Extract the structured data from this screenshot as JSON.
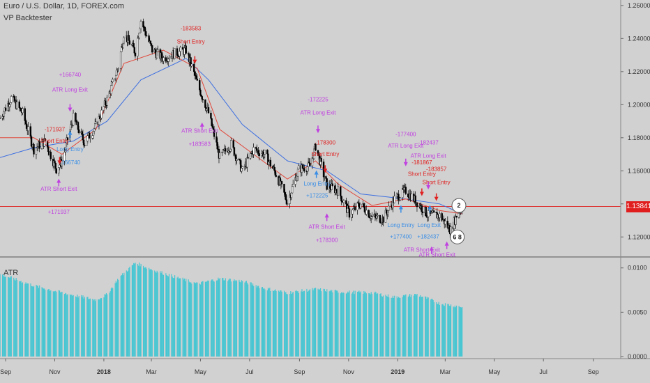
{
  "header": {
    "symbol_title": "Euro / U.S. Dollar, 1D, FOREX.com",
    "indicator_name": "VP Backtester",
    "atr_label": "ATR"
  },
  "colors": {
    "background": "#d1d1d1",
    "bull_candle": "#ffffff",
    "bear_candle": "#000000",
    "ema_fast": "#e0473a",
    "ema_slow": "#3d6fe0",
    "atr_bars": "#46c6d2",
    "long_label": "#3a8ee6",
    "short_label": "#e02020",
    "atr_exit_label": "#c040e0",
    "last_price": "#e01e1e"
  },
  "price_axis": {
    "ticks": [
      "1.26000",
      "1.24000",
      "1.22000",
      "1.20000",
      "1.18000",
      "1.16000",
      "1.14000",
      "1.12000"
    ],
    "last_price": "1.13841"
  },
  "atr_axis": {
    "ticks": [
      "0.0100",
      "0.0050",
      "0.0000"
    ]
  },
  "time_axis": {
    "ticks": [
      "Sep",
      "Nov",
      "2018",
      "Mar",
      "May",
      "Jul",
      "Sep",
      "Nov",
      "2019",
      "Mar",
      "May",
      "Jul",
      "Sep"
    ]
  },
  "trade_labels": [
    {
      "text": "+166740",
      "kind": "atr"
    },
    {
      "text": "ATR Long Exit",
      "kind": "atr"
    },
    {
      "text": "-171937",
      "kind": "short"
    },
    {
      "text": "Short Entry",
      "kind": "short"
    },
    {
      "text": "Long Entry",
      "kind": "long"
    },
    {
      "text": "-166740",
      "kind": "long"
    },
    {
      "text": "ATR Short Exit",
      "kind": "atr"
    },
    {
      "text": "+171937",
      "kind": "atr"
    },
    {
      "text": "-183583",
      "kind": "short"
    },
    {
      "text": "Short Entry",
      "kind": "short"
    },
    {
      "text": "ATR Short Exit",
      "kind": "atr"
    },
    {
      "text": "+183583",
      "kind": "atr"
    },
    {
      "text": "-172225",
      "kind": "atr"
    },
    {
      "text": "ATR Long Exit",
      "kind": "atr"
    },
    {
      "text": "-178300",
      "kind": "short"
    },
    {
      "text": "Short Entry",
      "kind": "short"
    },
    {
      "text": "Long Entry",
      "kind": "long"
    },
    {
      "text": "+172225",
      "kind": "long"
    },
    {
      "text": "ATR Short Exit",
      "kind": "atr"
    },
    {
      "text": "+178300",
      "kind": "atr"
    },
    {
      "text": "-177400",
      "kind": "atr"
    },
    {
      "text": "ATR Long Exit",
      "kind": "atr"
    },
    {
      "text": "-182437",
      "kind": "atr"
    },
    {
      "text": "ATR Long Exit",
      "kind": "atr"
    },
    {
      "text": "-181867",
      "kind": "short"
    },
    {
      "text": "Short Entry",
      "kind": "short"
    },
    {
      "text": "-183857",
      "kind": "short"
    },
    {
      "text": "Short Entry",
      "kind": "short"
    },
    {
      "text": "Long Entry",
      "kind": "long"
    },
    {
      "text": "Long Exit",
      "kind": "long"
    },
    {
      "text": "+177400",
      "kind": "long"
    },
    {
      "text": "+182437",
      "kind": "long"
    },
    {
      "text": "ATR Short Exit",
      "kind": "atr"
    },
    {
      "text": "ATR Short Exit",
      "kind": "atr"
    }
  ],
  "event_badges": [
    "2",
    "6 8"
  ],
  "chart_data": {
    "type": "candlestick",
    "title": "Euro / U.S. Dollar, 1D, FOREX.com",
    "x_range": [
      "Sep 2017",
      "Oct 2019"
    ],
    "ylim": [
      1.11,
      1.265
    ],
    "close_series": {
      "name": "EUR/USD close",
      "points": [
        [
          "2017-08-25",
          1.192
        ],
        [
          "2017-09-08",
          1.204
        ],
        [
          "2017-09-22",
          1.195
        ],
        [
          "2017-10-06",
          1.173
        ],
        [
          "2017-10-20",
          1.178
        ],
        [
          "2017-11-03",
          1.161
        ],
        [
          "2017-11-10",
          1.166
        ],
        [
          "2017-11-24",
          1.192
        ],
        [
          "2017-12-08",
          1.177
        ],
        [
          "2017-12-22",
          1.187
        ],
        [
          "2018-01-05",
          1.203
        ],
        [
          "2018-01-19",
          1.223
        ],
        [
          "2018-01-26",
          1.243
        ],
        [
          "2018-02-09",
          1.232
        ],
        [
          "2018-02-16",
          1.251
        ],
        [
          "2018-03-02",
          1.233
        ],
        [
          "2018-03-16",
          1.228
        ],
        [
          "2018-03-30",
          1.231
        ],
        [
          "2018-04-13",
          1.233
        ],
        [
          "2018-04-27",
          1.213
        ],
        [
          "2018-05-11",
          1.195
        ],
        [
          "2018-05-25",
          1.168
        ],
        [
          "2018-06-08",
          1.176
        ],
        [
          "2018-06-22",
          1.16
        ],
        [
          "2018-07-06",
          1.173
        ],
        [
          "2018-07-20",
          1.17
        ],
        [
          "2018-08-03",
          1.158
        ],
        [
          "2018-08-17",
          1.141
        ],
        [
          "2018-08-31",
          1.161
        ],
        [
          "2018-09-14",
          1.163
        ],
        [
          "2018-09-21",
          1.175
        ],
        [
          "2018-10-05",
          1.151
        ],
        [
          "2018-10-19",
          1.148
        ],
        [
          "2018-11-02",
          1.134
        ],
        [
          "2018-11-16",
          1.14
        ],
        [
          "2018-11-30",
          1.132
        ],
        [
          "2018-12-14",
          1.131
        ],
        [
          "2018-12-28",
          1.143
        ],
        [
          "2019-01-11",
          1.148
        ],
        [
          "2019-01-25",
          1.141
        ],
        [
          "2019-02-08",
          1.133
        ],
        [
          "2019-02-22",
          1.133
        ],
        [
          "2019-03-08",
          1.124
        ],
        [
          "2019-03-15",
          1.133
        ],
        [
          "2019-03-22",
          1.138
        ]
      ]
    },
    "ema_fast_series": {
      "points": [
        [
          "2017-08-25",
          1.18
        ],
        [
          "2017-10-06",
          1.18
        ],
        [
          "2017-11-10",
          1.17
        ],
        [
          "2017-12-22",
          1.185
        ],
        [
          "2018-01-26",
          1.225
        ],
        [
          "2018-03-16",
          1.233
        ],
        [
          "2018-04-27",
          1.222
        ],
        [
          "2018-05-25",
          1.185
        ],
        [
          "2018-07-06",
          1.17
        ],
        [
          "2018-08-17",
          1.155
        ],
        [
          "2018-09-21",
          1.166
        ],
        [
          "2018-10-19",
          1.152
        ],
        [
          "2018-11-30",
          1.139
        ],
        [
          "2019-01-11",
          1.143
        ],
        [
          "2019-02-22",
          1.136
        ],
        [
          "2019-03-22",
          1.134
        ]
      ]
    },
    "ema_slow_series": {
      "points": [
        [
          "2017-08-25",
          1.168
        ],
        [
          "2017-10-06",
          1.174
        ],
        [
          "2017-11-24",
          1.178
        ],
        [
          "2018-01-05",
          1.19
        ],
        [
          "2018-02-16",
          1.215
        ],
        [
          "2018-04-13",
          1.228
        ],
        [
          "2018-05-11",
          1.215
        ],
        [
          "2018-06-22",
          1.188
        ],
        [
          "2018-08-17",
          1.166
        ],
        [
          "2018-10-05",
          1.16
        ],
        [
          "2018-11-16",
          1.146
        ],
        [
          "2019-01-11",
          1.143
        ],
        [
          "2019-02-22",
          1.14
        ],
        [
          "2019-03-22",
          1.134
        ]
      ]
    },
    "atr_series": {
      "name": "ATR",
      "ylim": [
        0,
        0.011
      ],
      "points": [
        [
          "2017-08-25",
          0.0093
        ],
        [
          "2017-10-06",
          0.008
        ],
        [
          "2017-11-10",
          0.0072
        ],
        [
          "2017-12-22",
          0.0064
        ],
        [
          "2018-01-05",
          0.007
        ],
        [
          "2018-01-19",
          0.0088
        ],
        [
          "2018-02-09",
          0.0106
        ],
        [
          "2018-03-02",
          0.0098
        ],
        [
          "2018-03-30",
          0.009
        ],
        [
          "2018-04-27",
          0.0082
        ],
        [
          "2018-05-25",
          0.0088
        ],
        [
          "2018-06-22",
          0.0085
        ],
        [
          "2018-07-20",
          0.0077
        ],
        [
          "2018-08-17",
          0.0072
        ],
        [
          "2018-09-21",
          0.0076
        ],
        [
          "2018-10-19",
          0.0073
        ],
        [
          "2018-11-30",
          0.0072
        ],
        [
          "2018-12-28",
          0.0067
        ],
        [
          "2019-01-25",
          0.007
        ],
        [
          "2019-02-22",
          0.006
        ],
        [
          "2019-03-22",
          0.0056
        ]
      ]
    }
  }
}
